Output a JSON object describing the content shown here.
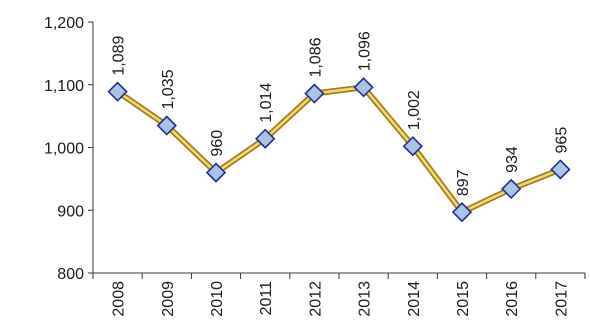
{
  "chart_data": {
    "type": "line",
    "categories": [
      "2008",
      "2009",
      "2010",
      "2011",
      "2012",
      "2013",
      "2014",
      "2015",
      "2016",
      "2017"
    ],
    "values": [
      1089,
      1035,
      960,
      1014,
      1086,
      1096,
      1002,
      897,
      934,
      965
    ],
    "value_labels": [
      "1,089",
      "1,035",
      "960",
      "1,014",
      "1,086",
      "1,096",
      "1,002",
      "897",
      "934",
      "965"
    ],
    "title": "",
    "xlabel": "",
    "ylabel": "",
    "ylim": [
      800,
      1200
    ],
    "y_ticks": [
      800,
      900,
      1000,
      1100,
      1200
    ],
    "y_tick_labels": [
      "800",
      "900",
      "1,000",
      "1,100",
      "1,200"
    ],
    "grid": false,
    "legend": "none",
    "colors": {
      "line_outer": "#a07f16",
      "line_inner": "#f3d97a",
      "marker_fill": "#a9c3e9",
      "marker_stroke": "#1f2f8a",
      "axis": "#333333"
    }
  }
}
